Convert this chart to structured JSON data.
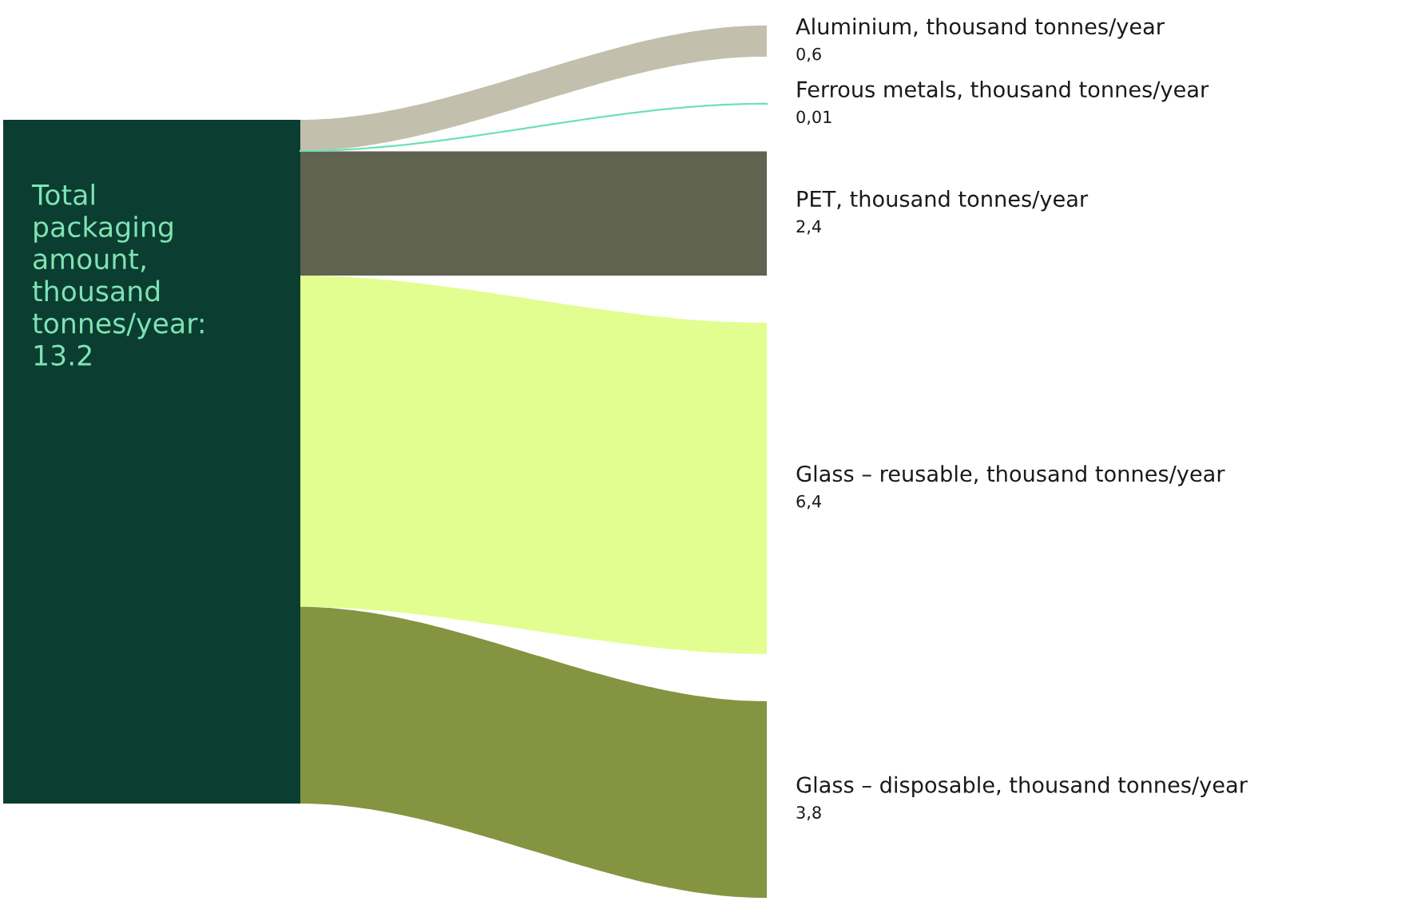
{
  "chart_data": {
    "type": "other",
    "annotations": [
      "Total packaging amount, thousand tonnes/year: 13.2"
    ],
    "color": "#0b3d31",
    "categories": [
      "Aluminium, thousand tonnes/year",
      "Ferrous metals, thousand tonnes/year",
      "PET, thousand tonnes/year",
      "Glass – reusable, thousand tonnes/year",
      "Glass – disposable, thousand tonnes/year"
    ],
    "values": [
      0.6,
      0.01,
      2.4,
      6.4,
      3.8
    ],
    "value_labels": [
      "0,6",
      "0,01",
      "2,4",
      "6,4",
      "3,8"
    ],
    "colors": [
      "#c2c0ac",
      "#6ee0b5",
      "#5f634f",
      "#e2fe91",
      "#849441"
    ]
  }
}
